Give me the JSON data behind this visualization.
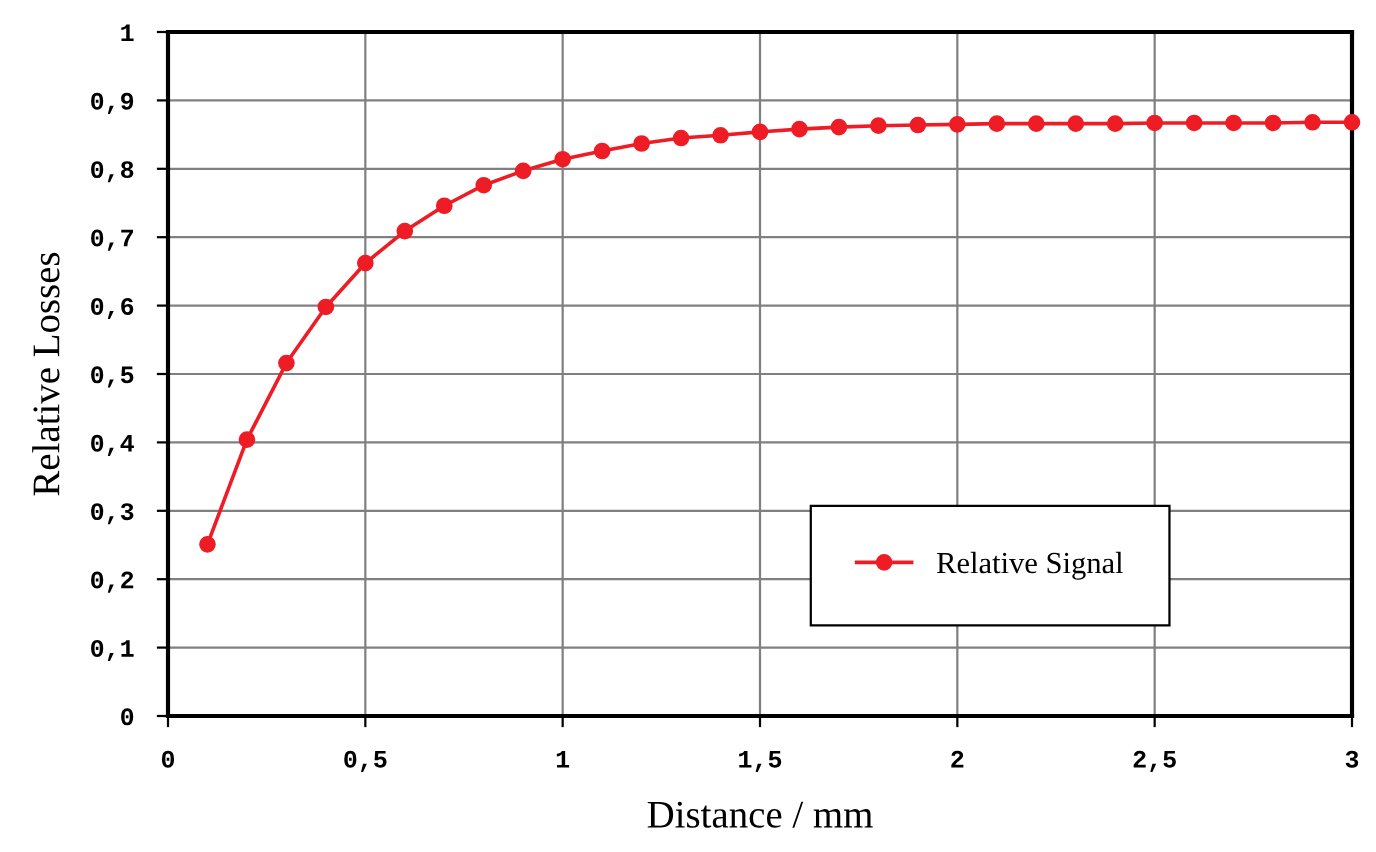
{
  "chart_data": {
    "type": "line",
    "xlabel": "Distance / mm",
    "ylabel": "Relative Losses",
    "x": [
      0.1,
      0.2,
      0.3,
      0.4,
      0.5,
      0.6,
      0.7,
      0.8,
      0.9,
      1.0,
      1.1,
      1.2,
      1.3,
      1.4,
      1.5,
      1.6,
      1.7,
      1.8,
      1.9,
      2.0,
      2.1,
      2.2,
      2.3,
      2.4,
      2.5,
      2.6,
      2.7,
      2.8,
      2.9,
      3.0
    ],
    "series": [
      {
        "name": "Relative Signal",
        "color": "#ee1c25",
        "values": [
          0.251,
          0.404,
          0.516,
          0.598,
          0.662,
          0.709,
          0.746,
          0.776,
          0.797,
          0.814,
          0.826,
          0.837,
          0.845,
          0.849,
          0.854,
          0.858,
          0.861,
          0.863,
          0.864,
          0.865,
          0.866,
          0.866,
          0.866,
          0.866,
          0.867,
          0.867,
          0.867,
          0.867,
          0.868,
          0.868
        ]
      }
    ],
    "xlim": [
      0,
      3
    ],
    "xticks": [
      0,
      {
        "value": 0.5,
        "label": "0,5"
      },
      1,
      {
        "value": 1.5,
        "label": "1,5"
      },
      2,
      {
        "value": 2.5,
        "label": "2,5"
      },
      3
    ],
    "ylim": [
      0,
      1
    ],
    "yticks": [
      0,
      {
        "value": 0.1,
        "label": "0,1"
      },
      {
        "value": 0.2,
        "label": "0,2"
      },
      {
        "value": 0.3,
        "label": "0,3"
      },
      {
        "value": 0.4,
        "label": "0,4"
      },
      {
        "value": 0.5,
        "label": "0,5"
      },
      {
        "value": 0.6,
        "label": "0,6"
      },
      {
        "value": 0.7,
        "label": "0,7"
      },
      {
        "value": 0.8,
        "label": "0,8"
      },
      {
        "value": 0.9,
        "label": "0,9"
      },
      1
    ],
    "grid": true,
    "legend": "bottom right",
    "marker": "circle",
    "line_style": "solid"
  }
}
